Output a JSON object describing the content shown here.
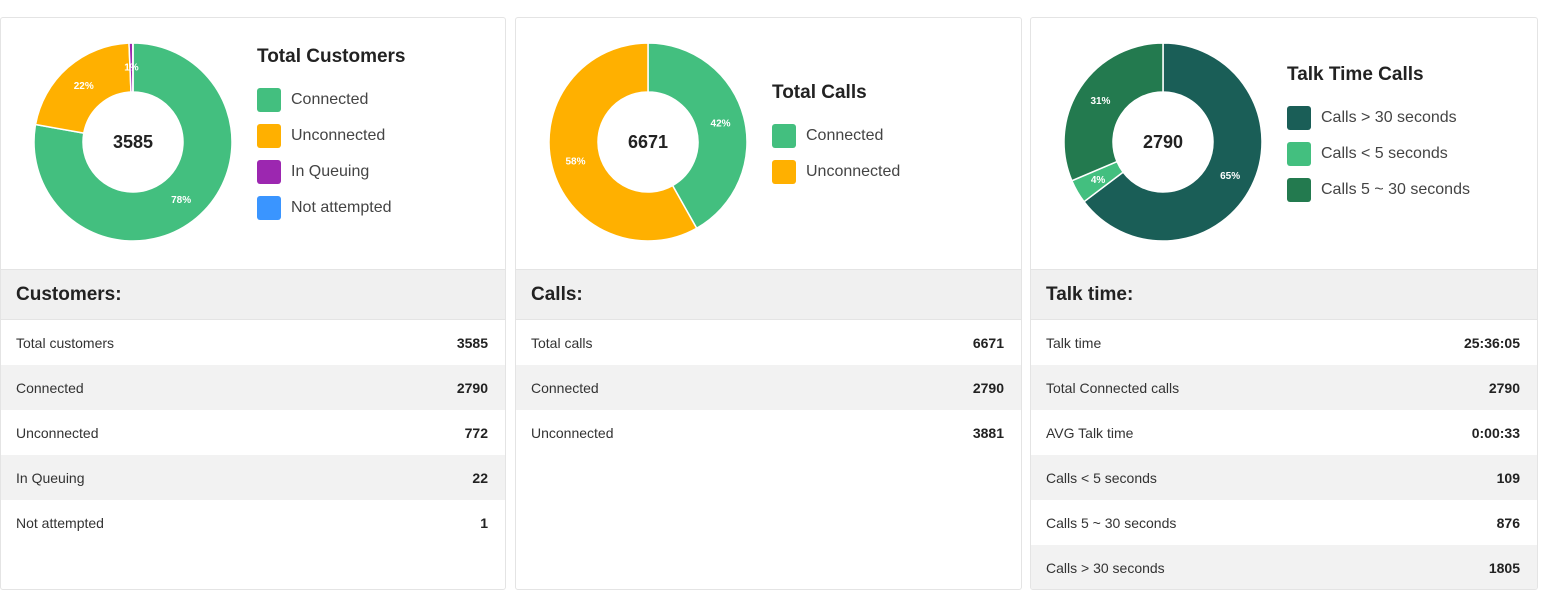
{
  "chart_data": [
    {
      "type": "pie",
      "variant": "donut",
      "title": "Total Customers",
      "center_label": "3585",
      "categories": [
        "Connected",
        "Unconnected",
        "In Queuing",
        "Not attempted"
      ],
      "values": [
        2790,
        772,
        22,
        1
      ],
      "percent_labels": [
        "78%",
        "22%",
        "1%",
        ""
      ],
      "colors": [
        "#43bf7f",
        "#ffb000",
        "#9c27b0",
        "#3a95ff"
      ],
      "legend": "right"
    },
    {
      "type": "pie",
      "variant": "donut",
      "title": "Total Calls",
      "center_label": "6671",
      "categories": [
        "Connected",
        "Unconnected"
      ],
      "values": [
        2790,
        3881
      ],
      "percent_labels": [
        "42%",
        "58%"
      ],
      "colors": [
        "#43bf7f",
        "#ffb000"
      ],
      "legend": "right"
    },
    {
      "type": "pie",
      "variant": "donut",
      "title": "Talk Time Calls",
      "center_label": "2790",
      "categories": [
        "Calls > 30 seconds",
        "Calls < 5 seconds",
        "Calls 5 ~ 30 seconds"
      ],
      "values": [
        1805,
        109,
        876
      ],
      "percent_labels": [
        "65%",
        "4%",
        "31%"
      ],
      "colors": [
        "#1a5e57",
        "#43bf7f",
        "#237a4f"
      ],
      "legend": "right"
    }
  ],
  "tables": [
    {
      "heading": "Customers:",
      "rows": [
        {
          "label": "Total customers",
          "value": "3585"
        },
        {
          "label": "Connected",
          "value": "2790"
        },
        {
          "label": "Unconnected",
          "value": "772"
        },
        {
          "label": "In Queuing",
          "value": "22"
        },
        {
          "label": "Not attempted",
          "value": "1"
        }
      ]
    },
    {
      "heading": "Calls:",
      "rows": [
        {
          "label": "Total calls",
          "value": "6671"
        },
        {
          "label": "Connected",
          "value": "2790"
        },
        {
          "label": "Unconnected",
          "value": "3881"
        }
      ]
    },
    {
      "heading": "Talk time:",
      "rows": [
        {
          "label": "Talk time",
          "value": "25:36:05"
        },
        {
          "label": "Total Connected calls",
          "value": "2790"
        },
        {
          "label": "AVG Talk time",
          "value": "0:00:33"
        },
        {
          "label": "Calls < 5 seconds",
          "value": "109"
        },
        {
          "label": "Calls 5 ~ 30 seconds",
          "value": "876"
        },
        {
          "label": "Calls > 30 seconds",
          "value": "1805"
        }
      ]
    }
  ]
}
